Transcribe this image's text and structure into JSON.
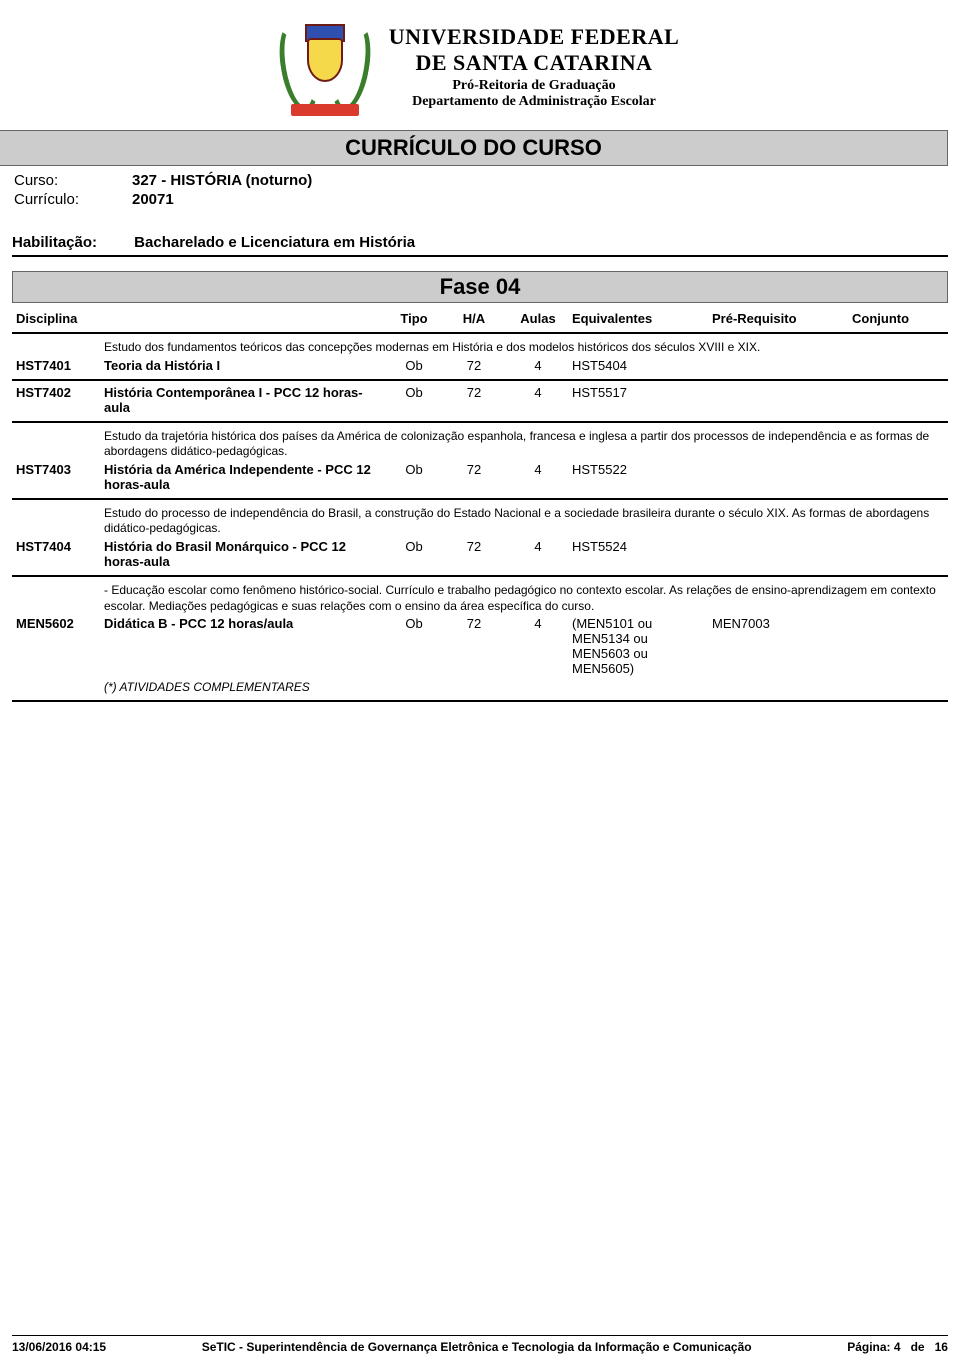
{
  "header": {
    "uni_name_line1": "UNIVERSIDADE FEDERAL",
    "uni_name_line2": "DE SANTA CATARINA",
    "sub1": "Pró-Reitoria de Graduação",
    "sub2": "Departamento de Administração Escolar"
  },
  "doc_title": "CURRÍCULO DO CURSO",
  "meta": {
    "curso_label": "Curso:",
    "curso_value": "327 - HISTÓRIA (noturno)",
    "curriculo_label": "Currículo:",
    "curriculo_value": "20071",
    "habil_label": "Habilitação:",
    "habil_value": "Bacharelado e Licenciatura em História"
  },
  "phase_title": "Fase 04",
  "columns": {
    "disciplina": "Disciplina",
    "tipo": "Tipo",
    "ha": "H/A",
    "aulas": "Aulas",
    "equivalentes": "Equivalentes",
    "prereq": "Pré-Requisito",
    "conjunto": "Conjunto"
  },
  "blocks": [
    {
      "desc": "Estudo dos fundamentos teóricos das concepções modernas em História e dos modelos históricos dos séculos XVIII e XIX.",
      "code": "HST7401",
      "name": "Teoria da História I",
      "tipo": "Ob",
      "ha": "72",
      "aulas": "4",
      "equiv": "HST5404",
      "prereq": "",
      "note": ""
    },
    {
      "desc": "",
      "code": "HST7402",
      "name": "História Contemporânea I - PCC 12 horas-aula",
      "tipo": "Ob",
      "ha": "72",
      "aulas": "4",
      "equiv": "HST5517",
      "prereq": "",
      "note": ""
    },
    {
      "desc": "Estudo da trajetória histórica dos países da América de colonização espanhola, francesa e inglesa a partir dos processos de independência e as formas de abordagens didático-pedagógicas.",
      "code": "HST7403",
      "name": "História da América Independente - PCC 12 horas-aula",
      "tipo": "Ob",
      "ha": "72",
      "aulas": "4",
      "equiv": "HST5522",
      "prereq": "",
      "note": ""
    },
    {
      "desc": "Estudo do processo de independência do Brasil, a construção do Estado Nacional e a sociedade brasileira durante o século XIX. As formas de abordagens didático-pedagógicas.",
      "code": "HST7404",
      "name": "História do Brasil Monárquico - PCC 12 horas-aula",
      "tipo": "Ob",
      "ha": "72",
      "aulas": "4",
      "equiv": "HST5524",
      "prereq": "",
      "note": ""
    },
    {
      "desc": " - Educação escolar como fenômeno histórico-social. Currículo e trabalho pedagógico no contexto escolar. As relações de ensino-aprendizagem em contexto escolar. Mediações pedagógicas e suas relações com o ensino da área específica do curso.",
      "code": "MEN5602",
      "name": "Didática B - PCC 12 horas/aula",
      "tipo": "Ob",
      "ha": "72",
      "aulas": "4",
      "equiv": "(MEN5101  ou\nMEN5134  ou\nMEN5603  ou\nMEN5605)",
      "prereq": "MEN7003",
      "note": "(*) ATIVIDADES COMPLEMENTARES"
    }
  ],
  "footer": {
    "timestamp": "13/06/2016 04:15",
    "org": "SeTIC - Superintendência de Governança Eletrônica e Tecnologia da Informação e Comunicação",
    "page_label": "Página:",
    "page_current": "4",
    "page_sep": "de",
    "page_total": "16"
  },
  "colors": {
    "band_bg": "#cccccc",
    "band_border": "#666666",
    "text": "#000000",
    "rule": "#000000"
  }
}
